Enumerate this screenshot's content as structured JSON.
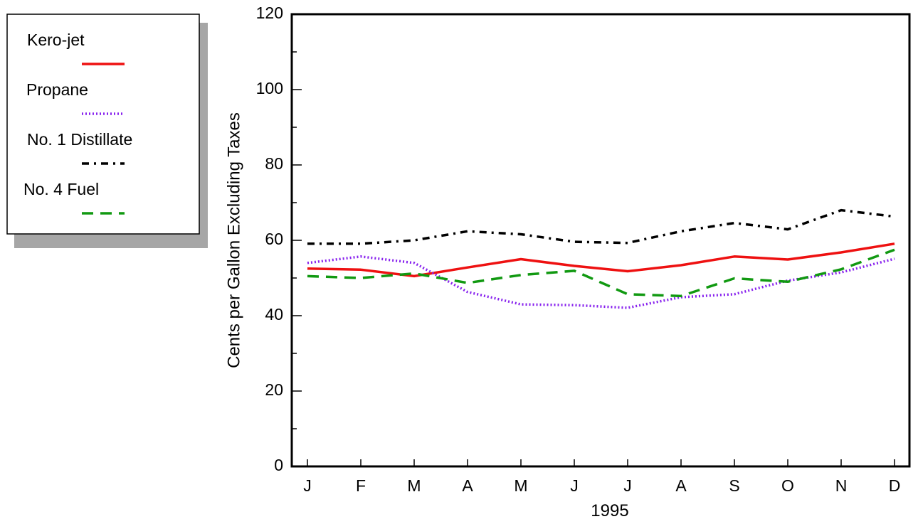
{
  "chart_data": {
    "type": "line",
    "title": "",
    "xlabel": "1995",
    "ylabel": "Cents per Gallon Excluding Taxes",
    "ylim": [
      0,
      120
    ],
    "yticks": [
      0,
      20,
      40,
      60,
      80,
      100,
      120
    ],
    "categories": [
      "J",
      "F",
      "M",
      "A",
      "M",
      "J",
      "J",
      "A",
      "S",
      "O",
      "N",
      "D"
    ],
    "grid": false,
    "legend_position": "top-left outside",
    "series": [
      {
        "name": "Kero-jet",
        "color": "#ee1111",
        "dash": "solid",
        "values": [
          52.5,
          52.2,
          50.5,
          52.8,
          55.0,
          53.2,
          51.8,
          53.4,
          55.7,
          54.9,
          56.8,
          59.1
        ]
      },
      {
        "name": "Propane",
        "color": "#8822ee",
        "dash": "dotted",
        "values": [
          54.0,
          55.7,
          54.0,
          46.3,
          43.0,
          42.8,
          42.1,
          44.9,
          45.7,
          49.3,
          51.5,
          55.1
        ]
      },
      {
        "name": "No. 1 Distillate",
        "color": "#000000",
        "dash": "dash-dot",
        "values": [
          59.1,
          59.1,
          60.0,
          62.4,
          61.6,
          59.6,
          59.3,
          62.4,
          64.6,
          62.9,
          68.0,
          66.3
        ]
      },
      {
        "name": "No. 4 Fuel",
        "color": "#119911",
        "dash": "dashed",
        "values": [
          50.5,
          50.0,
          51.2,
          48.7,
          50.8,
          51.9,
          45.7,
          45.2,
          49.9,
          49.0,
          52.3,
          57.5
        ]
      }
    ]
  }
}
